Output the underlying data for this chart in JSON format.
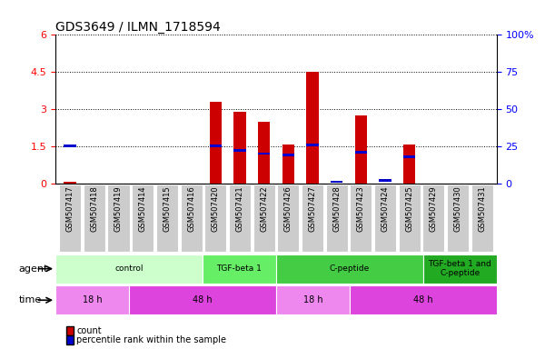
{
  "title": "GDS3649 / ILMN_1718594",
  "samples": [
    "GSM507417",
    "GSM507418",
    "GSM507419",
    "GSM507414",
    "GSM507415",
    "GSM507416",
    "GSM507420",
    "GSM507421",
    "GSM507422",
    "GSM507426",
    "GSM507427",
    "GSM507428",
    "GSM507423",
    "GSM507424",
    "GSM507425",
    "GSM507429",
    "GSM507430",
    "GSM507431"
  ],
  "count_values": [
    0.05,
    0.0,
    0.0,
    0.0,
    0.0,
    0.0,
    3.3,
    2.9,
    2.5,
    1.55,
    4.5,
    0.0,
    2.75,
    0.0,
    1.55,
    0.0,
    0.0,
    0.0
  ],
  "percentile_values": [
    25,
    0,
    0,
    0,
    0,
    0,
    25,
    22,
    20,
    19,
    26,
    1,
    21,
    2,
    18,
    0,
    0,
    0
  ],
  "ylim_left": [
    0,
    6
  ],
  "ylim_right": [
    0,
    100
  ],
  "yticks_left": [
    0,
    1.5,
    3.0,
    4.5,
    6.0
  ],
  "ytick_labels_left": [
    "0",
    "1.5",
    "3",
    "4.5",
    "6"
  ],
  "yticks_right": [
    0,
    25,
    50,
    75,
    100
  ],
  "ytick_labels_right": [
    "0",
    "25",
    "50",
    "75",
    "100%"
  ],
  "bar_color_count": "#cc0000",
  "bar_color_pct": "#0000cc",
  "agent_groups": [
    {
      "label": "control",
      "start": 0,
      "end": 6,
      "color": "#ccffcc"
    },
    {
      "label": "TGF-beta 1",
      "start": 6,
      "end": 9,
      "color": "#66ee66"
    },
    {
      "label": "C-peptide",
      "start": 9,
      "end": 15,
      "color": "#44cc44"
    },
    {
      "label": "TGF-beta 1 and\nC-peptide",
      "start": 15,
      "end": 18,
      "color": "#22aa22"
    }
  ],
  "time_groups": [
    {
      "label": "18 h",
      "start": 0,
      "end": 3,
      "color": "#ee88ee"
    },
    {
      "label": "48 h",
      "start": 3,
      "end": 9,
      "color": "#dd44dd"
    },
    {
      "label": "18 h",
      "start": 9,
      "end": 12,
      "color": "#ee88ee"
    },
    {
      "label": "48 h",
      "start": 12,
      "end": 18,
      "color": "#dd44dd"
    }
  ],
  "legend_count_label": "count",
  "legend_pct_label": "percentile rank within the sample",
  "agent_label": "agent",
  "time_label": "time",
  "tick_area_color": "#cccccc"
}
